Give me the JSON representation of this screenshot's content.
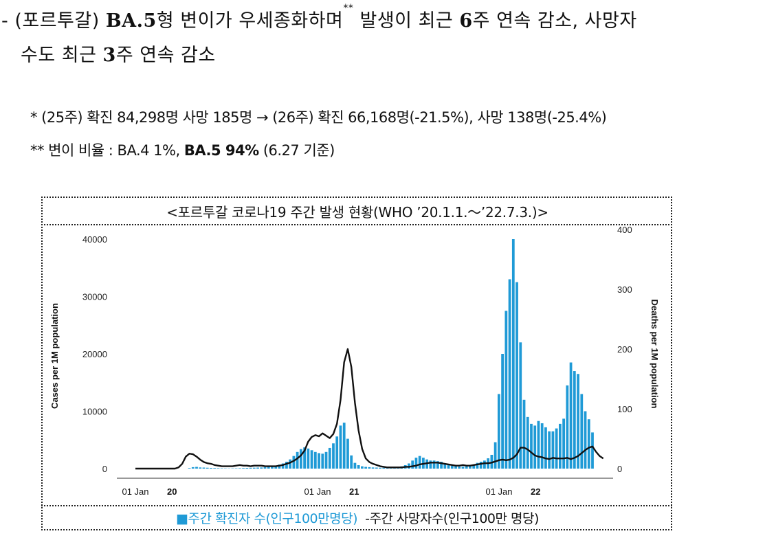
{
  "heading": {
    "line1_prefix": "- (포르투갈) ",
    "line1_bold_variant": "BA.5",
    "line1_mid": "형 변이가 우세종화하며",
    "line1_sup": "**",
    "line1_after_sup": " 발생이 최근 ",
    "line1_bold_weeks": "6",
    "line1_end": "주 연속 감소, 사망자",
    "line2_start": "수도 최근 ",
    "line2_bold_weeks": "3",
    "line2_end": "주 연속 감소"
  },
  "notes": {
    "note1": "* (25주) 확진 84,298명 사망 185명 → (26주) 확진 66,168명(-21.5%), 사망 138명(-25.4%)",
    "note2_prefix": "** 변이 비율 : BA.4 1%, ",
    "note2_bold": "BA.5 94%",
    "note2_suffix": " (6.27 기준)"
  },
  "figure": {
    "caption": "<포르투갈 코로나19 주간 발생 현황(WHO ’20.1.1.～’22.7.3.)>",
    "legend_cases": "■주간 확진자 수(인구100만명당)",
    "legend_deaths": "-주간 사망자수(인구100만 명당)"
  },
  "chart_data": {
    "type": "bar",
    "left_axis_title": "Cases per 1M population",
    "right_axis_title": "Deaths per 1M population",
    "left_ticks": [
      "0",
      "10000",
      "20000",
      "30000",
      "40000"
    ],
    "right_ticks": [
      "0",
      "100",
      "200",
      "300",
      "400"
    ],
    "left_ylim": [
      0,
      40000
    ],
    "right_ylim": [
      0,
      400
    ],
    "x_tick_labels": [
      {
        "label": "01 Jan",
        "year": "20"
      },
      {
        "label": "01 Jan",
        "year": "21"
      },
      {
        "label": "01 Jan",
        "year": "22"
      }
    ],
    "colors": {
      "bars": "#1f9ad6",
      "line": "#111111"
    },
    "series": [
      {
        "type": "bar",
        "axis": "left",
        "values": [
          0,
          0,
          0,
          0,
          0,
          0,
          0,
          0,
          0,
          0,
          0,
          0,
          0,
          0,
          0,
          100,
          250,
          300,
          200,
          180,
          150,
          120,
          100,
          80,
          60,
          50,
          40,
          50,
          60,
          80,
          100,
          120,
          140,
          160,
          180,
          200,
          250,
          300,
          400,
          500,
          700,
          900,
          1200,
          1600,
          2200,
          2900,
          3400,
          3700,
          3500,
          3200,
          2900,
          2700,
          2600,
          2900,
          3600,
          4400,
          5600,
          7500,
          8000,
          5200,
          2300,
          1000,
          600,
          400,
          300,
          250,
          200,
          180,
          150,
          150,
          160,
          200,
          250,
          300,
          400,
          600,
          900,
          1400,
          1900,
          2200,
          1900,
          1600,
          1400,
          1400,
          1300,
          1200,
          900,
          700,
          500,
          400,
          350,
          350,
          400,
          500,
          700,
          1000,
          1200,
          1400,
          1800,
          2400,
          4600,
          13000,
          20000,
          27500,
          33000,
          40000,
          32500,
          22000,
          12000,
          9000,
          7800,
          7500,
          8300,
          7900,
          7200,
          6500,
          6500,
          7000,
          7800,
          8700,
          14500,
          18500,
          17000,
          16500,
          13000,
          10000,
          8600,
          6300
        ],
        "start_index": 0
      },
      {
        "type": "line",
        "axis": "right",
        "values": [
          0,
          0,
          0,
          0,
          0,
          0,
          0,
          0,
          0,
          0,
          0,
          0,
          2,
          8,
          20,
          25,
          24,
          20,
          15,
          11,
          9,
          8,
          6,
          5,
          4,
          4,
          4,
          4,
          5,
          6,
          5,
          5,
          4,
          5,
          5,
          5,
          4,
          4,
          4,
          4,
          5,
          6,
          8,
          10,
          13,
          17,
          22,
          30,
          45,
          53,
          56,
          54,
          59,
          55,
          51,
          58,
          75,
          115,
          178,
          200,
          170,
          110,
          64,
          33,
          17,
          11,
          8,
          6,
          4,
          3,
          2,
          2,
          2,
          2,
          2,
          3,
          3,
          4,
          5,
          7,
          8,
          9,
          10,
          10,
          10,
          9,
          8,
          7,
          6,
          5,
          5,
          6,
          5,
          5,
          6,
          7,
          8,
          9,
          9,
          10,
          12,
          14,
          15,
          14,
          15,
          18,
          24,
          35,
          35,
          32,
          27,
          22,
          20,
          19,
          17,
          16,
          18,
          17,
          17,
          17,
          18,
          16,
          18,
          21,
          26,
          31,
          35,
          37,
          28,
          21,
          17
        ],
        "start_index": 0
      }
    ]
  }
}
